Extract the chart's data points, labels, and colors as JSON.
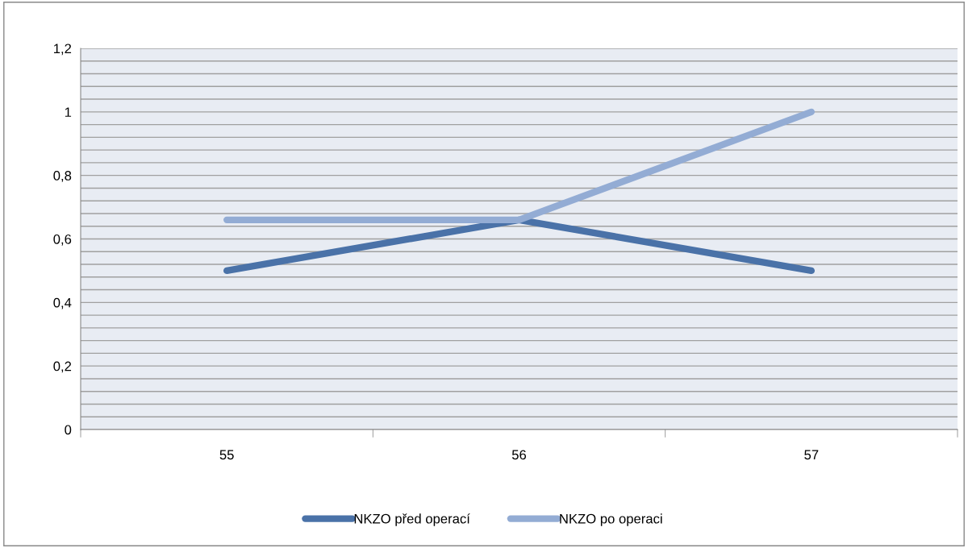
{
  "chart_data": {
    "type": "line",
    "categories": [
      "55",
      "56",
      "57"
    ],
    "series": [
      {
        "name": "NKZO před operací",
        "color": "#4a72a8",
        "values": [
          0.5,
          0.66,
          0.5
        ]
      },
      {
        "name": "NKZO po operaci",
        "color": "#93acd4",
        "values": [
          0.66,
          0.66,
          1.0
        ]
      }
    ],
    "ylim": [
      0,
      1.2
    ],
    "yticks": [
      0,
      {
        "value": 0.04,
        "label": null
      },
      {
        "value": 0.08,
        "label": null
      },
      {
        "value": 0.12,
        "label": null
      },
      {
        "value": 0.16,
        "label": null
      },
      {
        "value": 0.2,
        "label": "0,2"
      },
      {
        "value": 0.24,
        "label": null
      },
      {
        "value": 0.28,
        "label": null
      },
      {
        "value": 0.32,
        "label": null
      },
      {
        "value": 0.36,
        "label": null
      },
      {
        "value": 0.4,
        "label": "0,4"
      },
      {
        "value": 0.44,
        "label": null
      },
      {
        "value": 0.48,
        "label": null
      },
      {
        "value": 0.52,
        "label": null
      },
      {
        "value": 0.56,
        "label": null
      },
      {
        "value": 0.6,
        "label": "0,6"
      },
      {
        "value": 0.64,
        "label": null
      },
      {
        "value": 0.68,
        "label": null
      },
      {
        "value": 0.72,
        "label": null
      },
      {
        "value": 0.76,
        "label": null
      },
      {
        "value": 0.8,
        "label": "0,8"
      },
      {
        "value": 0.84,
        "label": null
      },
      {
        "value": 0.88,
        "label": null
      },
      {
        "value": 0.92,
        "label": null
      },
      {
        "value": 0.96,
        "label": null
      },
      1,
      {
        "value": 1.04,
        "label": null
      },
      {
        "value": 1.08,
        "label": null
      },
      {
        "value": 1.12,
        "label": null
      },
      {
        "value": 1.16,
        "label": null
      },
      {
        "value": 1.2,
        "label": "1,2"
      }
    ],
    "grid": "y",
    "legend": "bottom",
    "marker": "none",
    "line_style": "solid"
  }
}
